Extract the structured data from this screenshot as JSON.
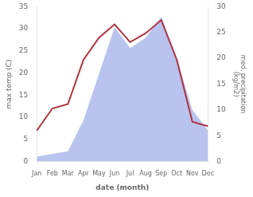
{
  "chart_data": {
    "type": "line",
    "categories": [
      "Jan",
      "Feb",
      "Mar",
      "Apr",
      "May",
      "Jun",
      "Jul",
      "Aug",
      "Sep",
      "Oct",
      "Nov",
      "Dec"
    ],
    "xlabel": "date (month)",
    "ylabel": "max temp (C)",
    "y2label": "med. precipitation\n(kg/m2)",
    "ylim": [
      0,
      35
    ],
    "yticks": [
      0,
      5,
      10,
      15,
      20,
      25,
      30,
      35
    ],
    "y2lim": [
      0,
      30
    ],
    "y2ticks": [
      0,
      5,
      10,
      15,
      20,
      25,
      30
    ],
    "grid": false,
    "series": [
      {
        "type": "area",
        "color": "#b8c4ee",
        "axis": "y2",
        "values": [
          1,
          1.5,
          2,
          8,
          17,
          26,
          22,
          24,
          28,
          20,
          10,
          6
        ]
      },
      {
        "type": "line",
        "color": "#b03040",
        "values": [
          7,
          12,
          13,
          23,
          28,
          31,
          27,
          29,
          32,
          23,
          9,
          8
        ]
      }
    ]
  }
}
